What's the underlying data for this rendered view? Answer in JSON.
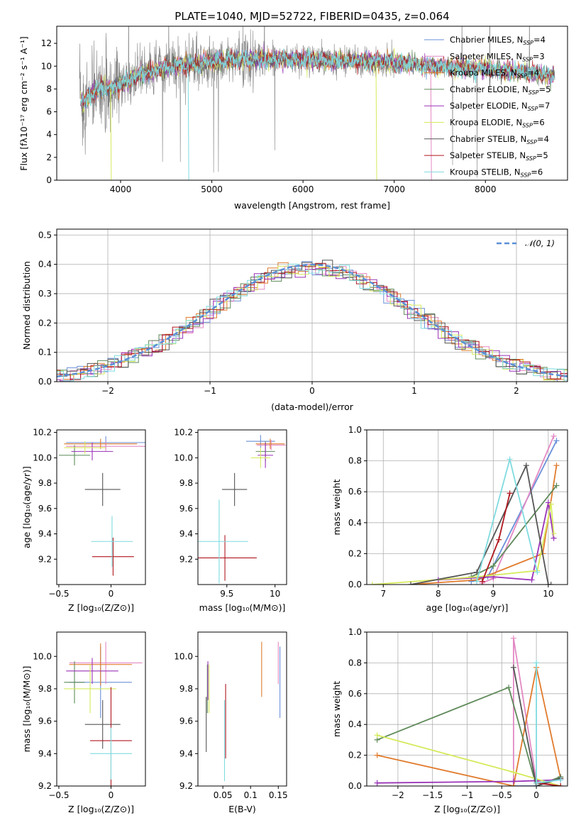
{
  "colors": [
    "#6a8fd8",
    "#e389c4",
    "#e07b2d",
    "#5f8a5a",
    "#9a33b8",
    "#d6ea5c",
    "#555555",
    "#b0171f",
    "#7fdbe0"
  ],
  "chart_data": [
    {
      "id": "spectrum",
      "type": "line",
      "title": "PLATE=1040, MJD=52722, FIBERID=0435, z=0.064",
      "xlabel": "wavelength [Angstrom, rest frame]",
      "ylabel": "Flux [fλ10⁻¹⁷ erg cm⁻² s⁻¹ A⁻¹]",
      "xlim": [
        3300,
        8900
      ],
      "ylim": [
        0,
        13.5
      ],
      "xticks": [
        4000,
        5000,
        6000,
        7000,
        8000
      ],
      "yticks": [
        0,
        2,
        4,
        6,
        8,
        10,
        12
      ],
      "legend_position": "upper-right",
      "data_color": "#808080",
      "continuum": {
        "x": [
          3550,
          3600,
          3650,
          3700,
          3800,
          3900,
          4000,
          4200,
          4400,
          4600,
          4800,
          5000,
          5200,
          5500,
          5800,
          6000,
          6200,
          6500,
          6800,
          7000,
          7200,
          7400,
          7600,
          7800,
          8000,
          8200,
          8400,
          8600,
          8750
        ],
        "y": [
          7.0,
          6.8,
          7.2,
          7.8,
          8.1,
          8.0,
          8.5,
          9.2,
          9.7,
          10.0,
          10.2,
          10.4,
          10.5,
          10.6,
          10.6,
          10.6,
          10.5,
          10.5,
          10.4,
          10.3,
          10.2,
          10.0,
          9.9,
          9.9,
          9.8,
          9.6,
          9.5,
          9.3,
          9.2
        ]
      },
      "series": [
        {
          "name": "Chabrier MILES, N",
          "sub": "SSP",
          "n": "=4"
        },
        {
          "name": "Salpeter MILES, N",
          "sub": "SSP",
          "n": "=3"
        },
        {
          "name": "Kroupa MILES, N",
          "sub": "SSP",
          "n": "=4"
        },
        {
          "name": "Chabrier ELODIE, N",
          "sub": "SSP",
          "n": "=5"
        },
        {
          "name": "Salpeter ELODIE, N",
          "sub": "SSP",
          "n": "=7"
        },
        {
          "name": "Kroupa ELODIE, N",
          "sub": "SSP",
          "n": "=6"
        },
        {
          "name": "Chabrier STELIB, N",
          "sub": "SSP",
          "n": "=4"
        },
        {
          "name": "Salpeter STELIB, N",
          "sub": "SSP",
          "n": "=5"
        },
        {
          "name": "Kroupa STELIB, N",
          "sub": "SSP",
          "n": "=6"
        }
      ]
    },
    {
      "id": "residuals",
      "type": "histogram",
      "xlabel": "(data-model)/error",
      "ylabel": "Normed distribution",
      "xlim": [
        -2.5,
        2.5
      ],
      "ylim": [
        0,
        0.52
      ],
      "xticks": [
        -2,
        -1,
        0,
        1,
        2
      ],
      "yticks": [
        0.0,
        0.1,
        0.2,
        0.3,
        0.4,
        0.5
      ],
      "gaussian_label": "𝒩(0, 1)",
      "gaussian_color": "#5b8fd6",
      "legend_position": "upper-right"
    },
    {
      "id": "age-vs-Z",
      "type": "errorbar",
      "xlabel": "Z [log₁₀(Z/Z⊙)]",
      "ylabel": "age  [log₁₀(age/yr)]",
      "xlim": [
        -0.52,
        0.33
      ],
      "ylim": [
        9.0,
        10.22
      ],
      "xticks": [
        -0.5,
        0.0
      ],
      "yticks": [
        9.2,
        9.4,
        9.6,
        9.8,
        10.0,
        10.2
      ],
      "points": [
        {
          "x": -0.05,
          "y": 10.12,
          "xerr": 0.38,
          "yerr": 0.05
        },
        {
          "x": -0.05,
          "y": 10.09,
          "xerr": 0.38,
          "yerr": 0.04
        },
        {
          "x": -0.1,
          "y": 10.11,
          "xerr": 0.35,
          "yerr": 0.04
        },
        {
          "x": -0.35,
          "y": 10.02,
          "xerr": 0.15,
          "yerr": 0.08
        },
        {
          "x": -0.18,
          "y": 10.05,
          "xerr": 0.2,
          "yerr": 0.07
        },
        {
          "x": -0.25,
          "y": 10.08,
          "xerr": 0.2,
          "yerr": 0.05
        },
        {
          "x": -0.08,
          "y": 9.75,
          "xerr": 0.17,
          "yerr": 0.13
        },
        {
          "x": 0.02,
          "y": 9.22,
          "xerr": 0.2,
          "yerr": 0.15
        },
        {
          "x": 0.01,
          "y": 9.34,
          "xerr": 0.2,
          "yerr": 0.2
        }
      ]
    },
    {
      "id": "age-vs-mass",
      "type": "errorbar",
      "xlabel": "mass [log₁₀(M/M⊙)]",
      "ylabel": "",
      "xlim": [
        9.2,
        10.12
      ],
      "ylim": [
        9.0,
        10.22
      ],
      "xticks": [
        9.5,
        10.0
      ],
      "yticks": [
        9.2,
        9.4,
        9.6,
        9.8,
        10.0,
        10.2
      ],
      "points": [
        {
          "x": 9.85,
          "y": 10.13,
          "xerr": 0.15,
          "yerr": 0.05
        },
        {
          "x": 9.96,
          "y": 10.1,
          "xerr": 0.15,
          "yerr": 0.04
        },
        {
          "x": 9.95,
          "y": 10.11,
          "xerr": 0.15,
          "yerr": 0.04
        },
        {
          "x": 9.9,
          "y": 10.05,
          "xerr": 0.1,
          "yerr": 0.08
        },
        {
          "x": 9.9,
          "y": 10.02,
          "xerr": 0.08,
          "yerr": 0.1
        },
        {
          "x": 9.85,
          "y": 10.0,
          "xerr": 0.1,
          "yerr": 0.08
        },
        {
          "x": 9.58,
          "y": 9.75,
          "xerr": 0.13,
          "yerr": 0.13
        },
        {
          "x": 9.48,
          "y": 9.21,
          "xerr": 0.33,
          "yerr": 0.18
        },
        {
          "x": 9.42,
          "y": 9.34,
          "xerr": 0.3,
          "yerr": 0.33
        }
      ]
    },
    {
      "id": "massweight-vs-age",
      "type": "line",
      "xlabel": "age  [log₁₀(age/yr)]",
      "ylabel": "mass weight",
      "xlim": [
        6.7,
        10.35
      ],
      "ylim": [
        0,
        1.0
      ],
      "xticks": [
        7,
        8,
        9,
        10
      ],
      "yticks": [
        0.0,
        0.2,
        0.4,
        0.6,
        0.8,
        1.0
      ],
      "series": [
        {
          "x": [
            8.6,
            8.9,
            10.15
          ],
          "y": [
            0.02,
            0.05,
            0.93
          ]
        },
        {
          "x": [
            8.8,
            9.0,
            10.1
          ],
          "y": [
            0.01,
            0.04,
            0.96
          ]
        },
        {
          "x": [
            7.5,
            8.7,
            9.9,
            10.15
          ],
          "y": [
            0.0,
            0.03,
            0.2,
            0.77
          ]
        },
        {
          "x": [
            8.6,
            9.0,
            10.15
          ],
          "y": [
            0.05,
            0.12,
            0.64
          ]
        },
        {
          "x": [
            8.0,
            9.0,
            9.7,
            10.0,
            10.1
          ],
          "y": [
            0.03,
            0.05,
            0.03,
            0.53,
            0.3
          ]
        },
        {
          "x": [
            6.8,
            8.7,
            9.8,
            10.05,
            10.1
          ],
          "y": [
            0.0,
            0.05,
            0.09,
            0.52,
            0.33
          ]
        },
        {
          "x": [
            7.5,
            8.7,
            9.6,
            10.0,
            10.05
          ],
          "y": [
            0.0,
            0.08,
            0.77,
            0.0,
            0.0
          ]
        },
        {
          "x": [
            8.8,
            9.1,
            9.3
          ],
          "y": [
            0.02,
            0.29,
            0.59
          ]
        },
        {
          "x": [
            8.7,
            9.3,
            9.8
          ],
          "y": [
            0.02,
            0.81,
            0.08
          ]
        }
      ]
    },
    {
      "id": "mass-vs-Z",
      "type": "errorbar",
      "xlabel": "Z [log₁₀(Z/Z⊙)]",
      "ylabel": "mass [log₁₀(M/M⊙)]",
      "xlim": [
        -0.52,
        0.33
      ],
      "ylim": [
        9.2,
        10.15
      ],
      "xticks": [
        -0.5,
        0.0
      ],
      "yticks": [
        9.2,
        9.4,
        9.6,
        9.8,
        10.0
      ],
      "points": [
        {
          "x": -0.1,
          "y": 9.84,
          "xerr": 0.3,
          "yerr": 0.22
        },
        {
          "x": -0.05,
          "y": 9.96,
          "xerr": 0.35,
          "yerr": 0.13
        },
        {
          "x": -0.1,
          "y": 9.95,
          "xerr": 0.3,
          "yerr": 0.13
        },
        {
          "x": -0.35,
          "y": 9.84,
          "xerr": 0.1,
          "yerr": 0.13
        },
        {
          "x": -0.18,
          "y": 9.91,
          "xerr": 0.25,
          "yerr": 0.08
        },
        {
          "x": -0.2,
          "y": 9.8,
          "xerr": 0.25,
          "yerr": 0.15
        },
        {
          "x": -0.08,
          "y": 9.58,
          "xerr": 0.17,
          "yerr": 0.15
        },
        {
          "x": 0.0,
          "y": 9.48,
          "xerr": 0.2,
          "yerr": 0.33
        },
        {
          "x": 0.0,
          "y": 9.4,
          "xerr": 0.2,
          "yerr": 0.16
        }
      ]
    },
    {
      "id": "mass-vs-EBV",
      "type": "errorbar",
      "xlabel": "E(B-V)",
      "ylabel": "",
      "xlim": [
        0.005,
        0.165
      ],
      "ylim": [
        9.2,
        10.15
      ],
      "xticks": [
        0.05,
        0.1,
        0.15
      ],
      "yticks": [
        9.2,
        9.4,
        9.6,
        9.8,
        10.0
      ],
      "points": [
        {
          "x": 0.153,
          "y": 9.84,
          "xerr": 0,
          "yerr": 0.22
        },
        {
          "x": 0.15,
          "y": 9.96,
          "xerr": 0,
          "yerr": 0.13
        },
        {
          "x": 0.12,
          "y": 9.92,
          "xerr": 0,
          "yerr": 0.17
        },
        {
          "x": 0.022,
          "y": 9.8,
          "xerr": 0,
          "yerr": 0.15
        },
        {
          "x": 0.023,
          "y": 9.85,
          "xerr": 0,
          "yerr": 0.12
        },
        {
          "x": 0.025,
          "y": 9.8,
          "xerr": 0,
          "yerr": 0.15
        },
        {
          "x": 0.02,
          "y": 9.58,
          "xerr": 0,
          "yerr": 0.17
        },
        {
          "x": 0.055,
          "y": 9.6,
          "xerr": 0,
          "yerr": 0.23
        },
        {
          "x": 0.053,
          "y": 9.48,
          "xerr": 0,
          "yerr": 0.25
        }
      ]
    },
    {
      "id": "massweight-vs-Z",
      "type": "line",
      "xlabel": "Z [log₁₀(Z/Z⊙)]",
      "ylabel": "mass weight",
      "xlim": [
        -2.45,
        0.45
      ],
      "ylim": [
        0,
        1.0
      ],
      "xticks": [
        -2.0,
        -1.5,
        -1.0,
        -0.5,
        0.0
      ],
      "yticks": [
        0.0,
        0.2,
        0.4,
        0.6,
        0.8,
        1.0
      ],
      "series": [
        {
          "x": [
            -0.33,
            0.0,
            0.35
          ],
          "y": [
            0.0,
            0.0,
            0.05
          ]
        },
        {
          "x": [
            -0.33,
            -0.33,
            0.0,
            0.35
          ],
          "y": [
            0.0,
            0.96,
            0.03,
            0.0
          ]
        },
        {
          "x": [
            -2.3,
            -0.33,
            0.0,
            0.35
          ],
          "y": [
            0.2,
            0.0,
            0.77,
            0.05
          ]
        },
        {
          "x": [
            -2.3,
            -0.4,
            0.0,
            0.35
          ],
          "y": [
            0.3,
            0.64,
            0.0,
            0.06
          ]
        },
        {
          "x": [
            -2.3,
            -0.33,
            0.35
          ],
          "y": [
            0.02,
            0.03,
            0.04
          ]
        },
        {
          "x": [
            -2.3,
            -0.33,
            0.35
          ],
          "y": [
            0.33,
            0.09,
            0.0
          ]
        },
        {
          "x": [
            -0.33,
            0.0,
            0.35
          ],
          "y": [
            0.77,
            0.0,
            0.05
          ]
        },
        {
          "x": [
            0.0,
            0.35
          ],
          "y": [
            0.02,
            0.0
          ]
        },
        {
          "x": [
            0.0,
            0.0,
            0.35
          ],
          "y": [
            0.8,
            0.02,
            0.04
          ]
        }
      ]
    }
  ]
}
